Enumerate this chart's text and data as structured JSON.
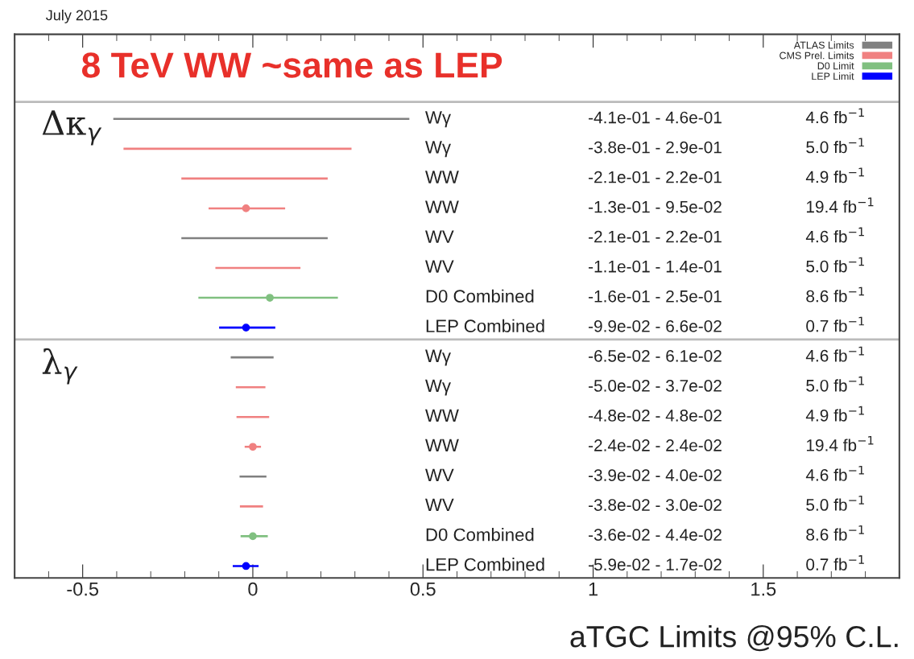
{
  "chart_data": {
    "type": "scatter",
    "orientation": "horizontal",
    "categories": [
      "Wγ",
      "Wγ",
      "WW",
      "WW",
      "WV",
      "WV",
      "D0 Combined",
      "LEP Combined",
      "Wγ",
      "Wγ",
      "WW",
      "WW",
      "WV",
      "WV",
      "D0 Combined",
      "LEP Combined"
    ],
    "y2_categories": [
      "4.6 fb$^{−1}$",
      "5.0 fb$^{−1}$",
      "4.9 fb$^{−1}$",
      "19.4 fb$^{−1}$",
      "4.6 fb$^{−1}$",
      "5.0 fb$^{−1}$",
      "8.6 fb$^{−1}$",
      "0.7 fb$^{−1}$",
      "4.6 fb$^{−1}$",
      "5.0 fb$^{−1}$",
      "4.9 fb$^{−1}$",
      "19.4 fb$^{−1}$",
      "4.6 fb$^{−1}$",
      "5.0 fb$^{−1}$",
      "8.6 fb$^{−1}$",
      "0.7 fb$^{−1}$"
    ],
    "series": [
      {
        "name": "ATLAS Limits",
        "type": "bar",
        "color": "#808080",
        "base": [
          -0.41,
          null,
          null,
          null,
          -0.21,
          null,
          null,
          null,
          -0.065,
          null,
          null,
          null,
          -0.039,
          null,
          null,
          null
        ],
        "values": [
          0.87,
          null,
          null,
          null,
          0.43,
          null,
          null,
          null,
          0.126,
          null,
          null,
          null,
          0.079,
          null,
          null,
          null
        ]
      },
      {
        "name": "CMS Prel. Limits",
        "type": "bar",
        "color": "#f08080",
        "base": [
          null,
          -0.38,
          -0.21,
          -0.13,
          null,
          -0.11,
          null,
          null,
          null,
          -0.05,
          -0.048,
          -0.024,
          null,
          -0.038,
          null,
          null
        ],
        "values": [
          null,
          0.67,
          0.43,
          0.225,
          null,
          0.25,
          null,
          null,
          null,
          0.087,
          0.096,
          0.048,
          null,
          0.068,
          null,
          null
        ]
      },
      {
        "name": "D0 Limit",
        "type": "bar",
        "color": "#80c080",
        "base": [
          null,
          null,
          null,
          null,
          null,
          null,
          -0.16,
          null,
          null,
          null,
          null,
          null,
          null,
          null,
          -0.036,
          null
        ],
        "values": [
          null,
          null,
          null,
          null,
          null,
          null,
          0.41,
          null,
          null,
          null,
          null,
          null,
          null,
          null,
          0.08,
          null
        ]
      },
      {
        "name": "LEP Limit",
        "type": "bar",
        "color": "#0000ff",
        "base": [
          null,
          null,
          null,
          null,
          null,
          null,
          null,
          -0.099,
          null,
          null,
          null,
          null,
          null,
          null,
          null,
          -0.059
        ],
        "values": [
          null,
          null,
          null,
          null,
          null,
          null,
          null,
          0.165,
          null,
          null,
          null,
          null,
          null,
          null,
          null,
          0.076
        ]
      },
      {
        "color": "#f08080",
        "marker": "circle",
        "values": [
          null,
          null,
          null,
          -0.02,
          null,
          null,
          null,
          null,
          null,
          null,
          null,
          0.0,
          null,
          null,
          null,
          null
        ]
      },
      {
        "color": "#80c080",
        "marker": "circle",
        "values": [
          null,
          null,
          null,
          null,
          null,
          null,
          0.05,
          null,
          null,
          null,
          null,
          null,
          null,
          null,
          0.0,
          null
        ]
      },
      {
        "color": "#0000ff",
        "marker": "circle",
        "values": [
          null,
          null,
          null,
          null,
          null,
          null,
          null,
          -0.02,
          null,
          null,
          null,
          null,
          null,
          null,
          null,
          -0.02
        ]
      }
    ],
    "xlim": [
      -0.7,
      1.9
    ],
    "xticks": [
      -0.5,
      0,
      0.5,
      1,
      1.5
    ],
    "tick_labels": "x",
    "grid": false,
    "legend": "top right",
    "annotations": [
      "July 2015",
      "8 TeV WW ~same as LEP",
      "Δκ$_{γ}$",
      "λ$_{γ}$",
      "aTGC Limits @95% C.L.",
      "-4.1e-01 - 4.6e-01",
      "-3.8e-01 - 2.9e-01",
      "-2.1e-01 - 2.2e-01",
      "-1.3e-01 - 9.5e-02",
      "-2.1e-01 - 2.2e-01",
      "-1.1e-01 - 1.4e-01",
      "-1.6e-01 - 2.5e-01",
      "-9.9e-02 - 6.6e-02",
      "-6.5e-02 - 6.1e-02",
      "-5.0e-02 - 3.7e-02",
      "-4.8e-02 - 4.8e-02",
      "-2.4e-02 - 2.4e-02",
      "-3.9e-02 - 4.0e-02",
      "-3.8e-02 - 3.0e-02",
      "-3.6e-02 - 4.4e-02",
      "-5.9e-02 - 1.7e-02"
    ]
  }
}
